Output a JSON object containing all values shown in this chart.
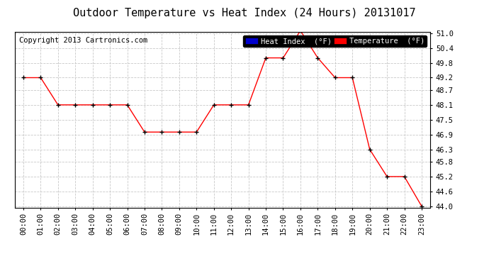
{
  "title": "Outdoor Temperature vs Heat Index (24 Hours) 20131017",
  "copyright": "Copyright 2013 Cartronics.com",
  "legend_label1": "Heat Index  (°F)",
  "legend_label2": "Temperature  (°F)",
  "hours": [
    "00:00",
    "01:00",
    "02:00",
    "03:00",
    "04:00",
    "05:00",
    "06:00",
    "07:00",
    "08:00",
    "09:00",
    "10:00",
    "11:00",
    "12:00",
    "13:00",
    "14:00",
    "15:00",
    "16:00",
    "17:00",
    "18:00",
    "19:00",
    "20:00",
    "21:00",
    "22:00",
    "23:00"
  ],
  "temp_values": [
    49.2,
    49.2,
    48.1,
    48.1,
    48.1,
    48.1,
    48.1,
    47.0,
    47.0,
    47.0,
    47.0,
    48.1,
    48.1,
    48.1,
    50.0,
    50.0,
    51.1,
    50.0,
    49.2,
    49.2,
    46.3,
    45.2,
    45.2,
    44.0
  ],
  "ylim_min": 44.0,
  "ylim_max": 51.0,
  "yticks": [
    44.0,
    44.6,
    45.2,
    45.8,
    46.3,
    46.9,
    47.5,
    48.1,
    48.7,
    49.2,
    49.8,
    50.4,
    51.0
  ],
  "temp_color": "#ff0000",
  "heat_legend_color": "#0000cd",
  "bg_color": "#ffffff",
  "plot_bg_color": "#ffffff",
  "grid_color": "#c8c8c8",
  "title_fontsize": 11,
  "tick_fontsize": 7.5,
  "copyright_fontsize": 7.5
}
